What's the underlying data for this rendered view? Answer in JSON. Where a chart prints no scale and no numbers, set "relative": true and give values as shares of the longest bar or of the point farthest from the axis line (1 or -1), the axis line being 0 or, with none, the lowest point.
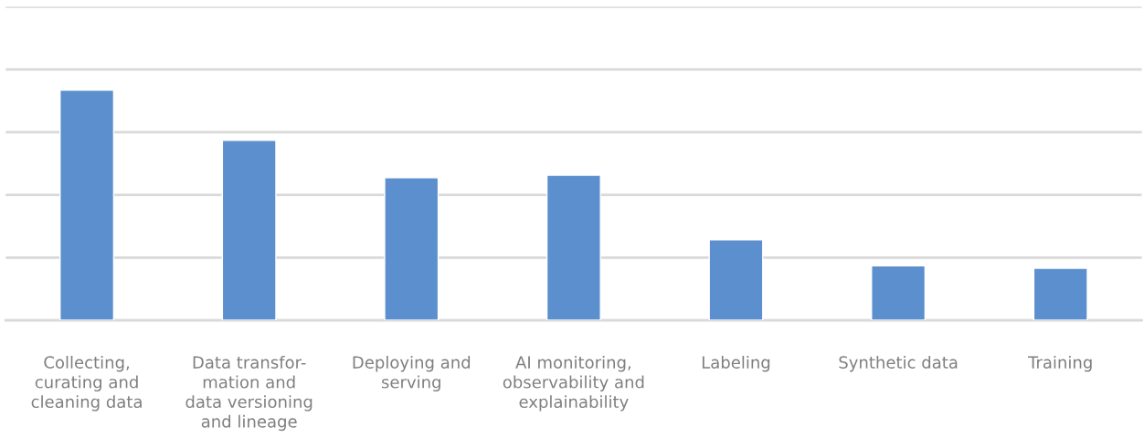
{
  "chart_data": {
    "type": "bar",
    "relative": true,
    "categories": [
      "Collecting,\ncurating and\ncleaning data",
      "Data transfor-\nmation and\ndata versioning\nand lineage",
      "Deploying and\nserving",
      "AI monitoring,\nobservability and\nexplainability",
      "Labeling",
      "Synthetic data",
      "Training"
    ],
    "values": [
      1,
      0.782,
      0.619,
      0.63,
      0.35,
      0.237,
      0.226
    ],
    "color": "#5b8fcd",
    "grid": "y",
    "legend": false
  }
}
